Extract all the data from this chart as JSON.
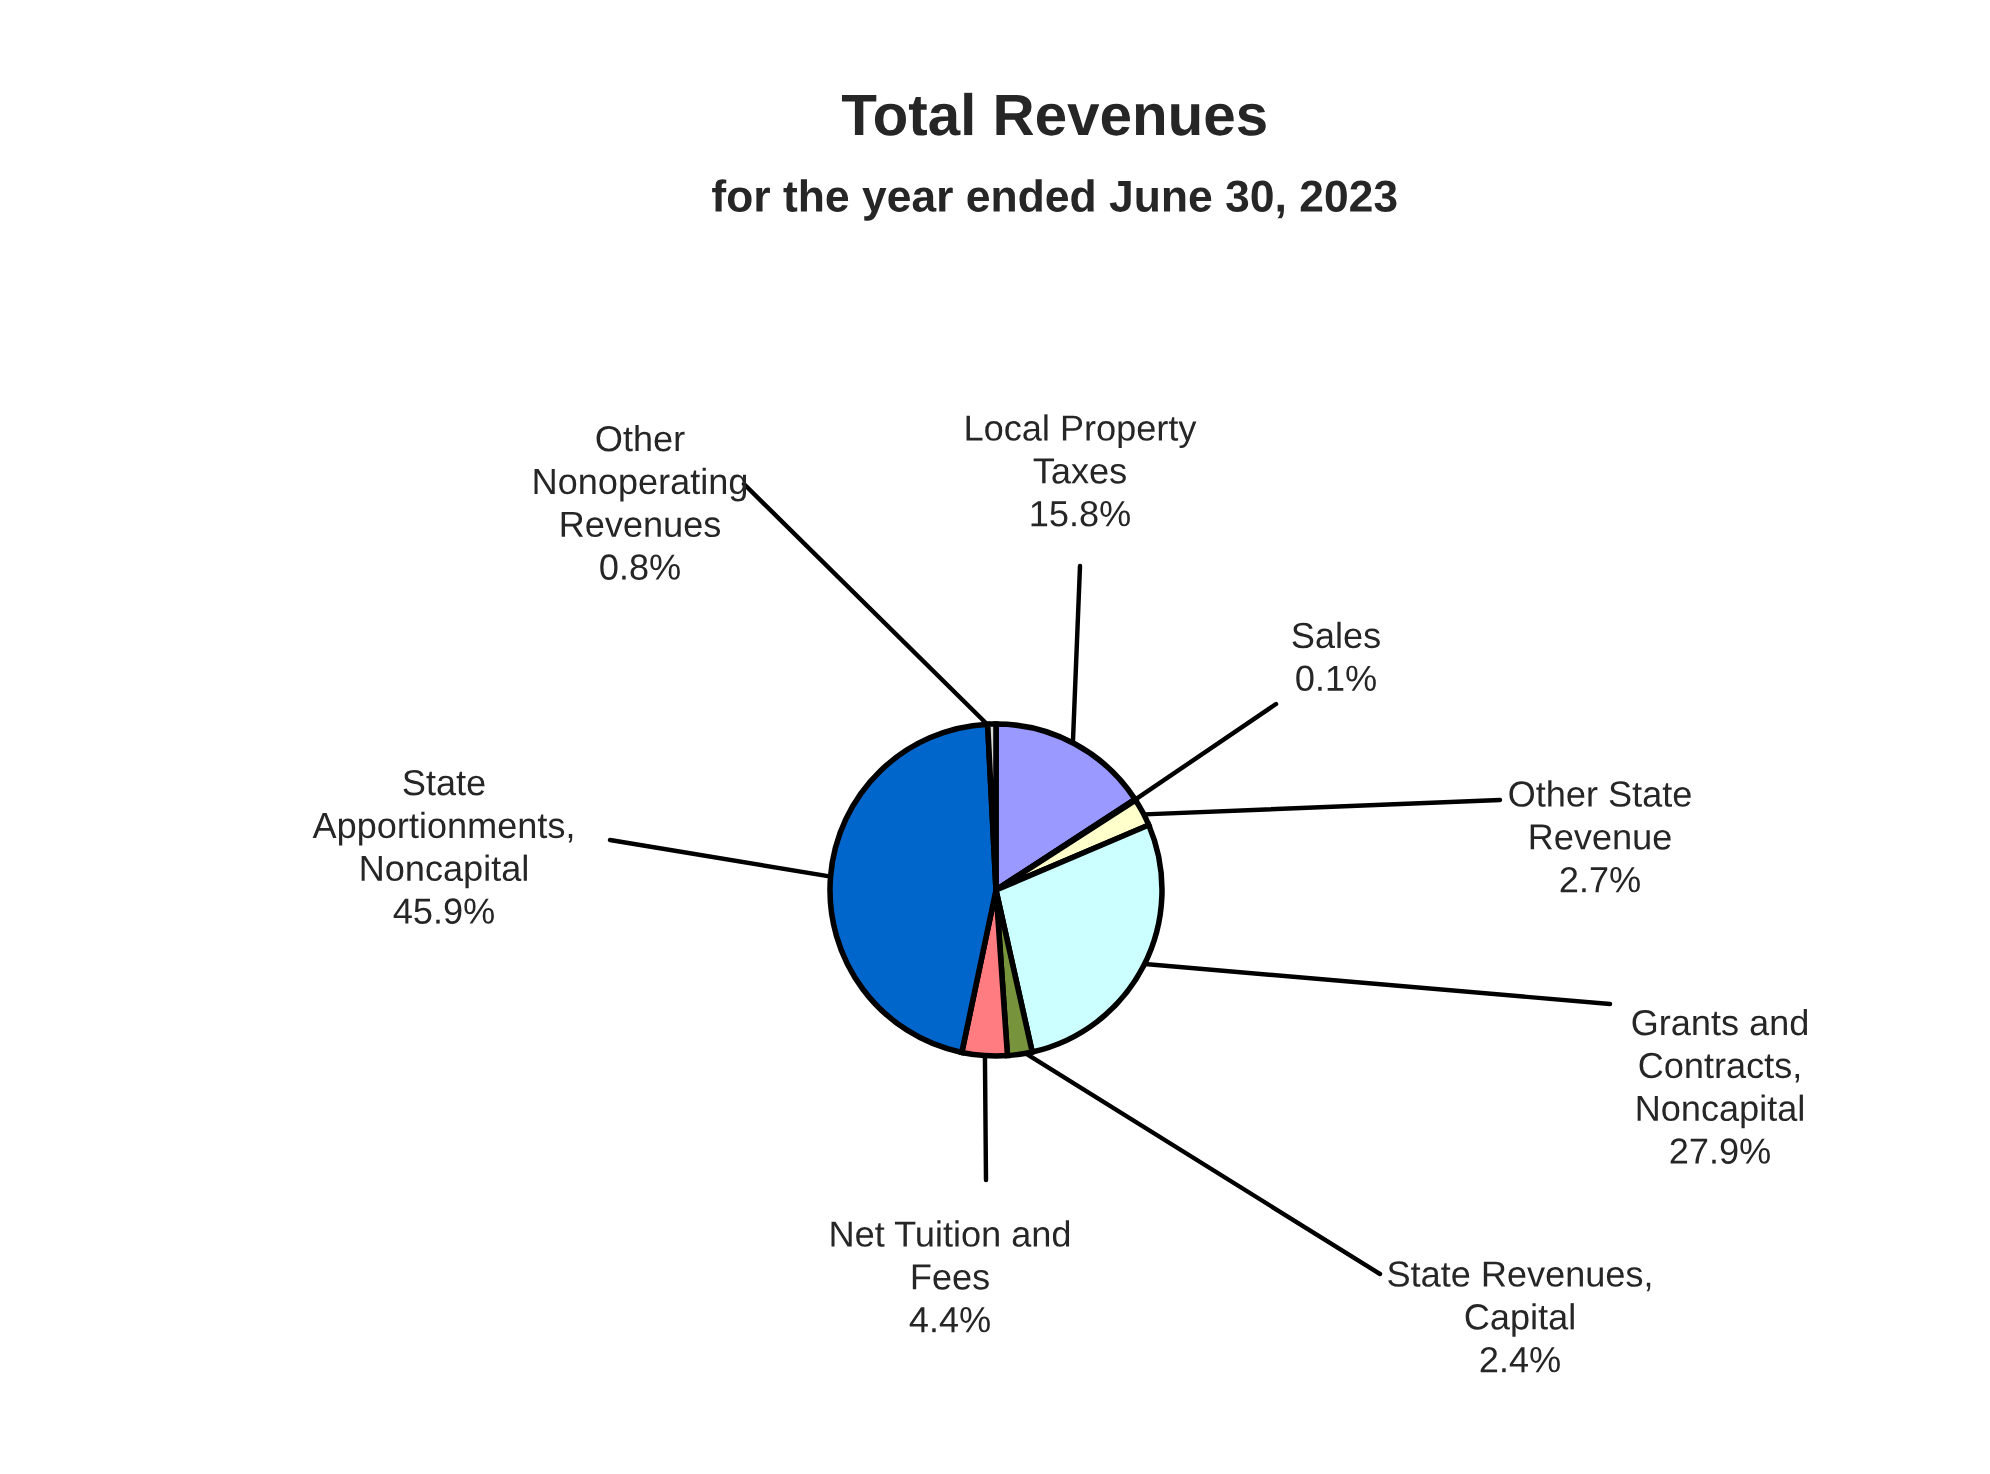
{
  "chart_data": {
    "type": "pie",
    "title": "Total Revenues",
    "subtitle": "for the year ended June 30, 2023",
    "categories": [
      "Local Property\nTaxes",
      "Sales",
      "Other State\nRevenue",
      "Grants and\nContracts,\nNoncapital",
      "State Revenues,\nCapital",
      "Net Tuition and\nFees",
      "State\nApportionments,\nNoncapital",
      "Other\nNonoperating\nRevenues"
    ],
    "values": [
      15.8,
      0.1,
      2.7,
      27.9,
      2.4,
      4.4,
      45.9,
      0.8
    ],
    "colors": [
      "#9999ff",
      "#993366",
      "#ffffcc",
      "#ccffff",
      "#77933c",
      "#ff7c80",
      "#0066cc",
      "#d9d9d9"
    ],
    "value_labels": [
      "15.8%",
      "0.1%",
      "2.7%",
      "27.9%",
      "2.4%",
      "4.4%",
      "45.9%",
      "0.8%"
    ],
    "legend": false
  }
}
